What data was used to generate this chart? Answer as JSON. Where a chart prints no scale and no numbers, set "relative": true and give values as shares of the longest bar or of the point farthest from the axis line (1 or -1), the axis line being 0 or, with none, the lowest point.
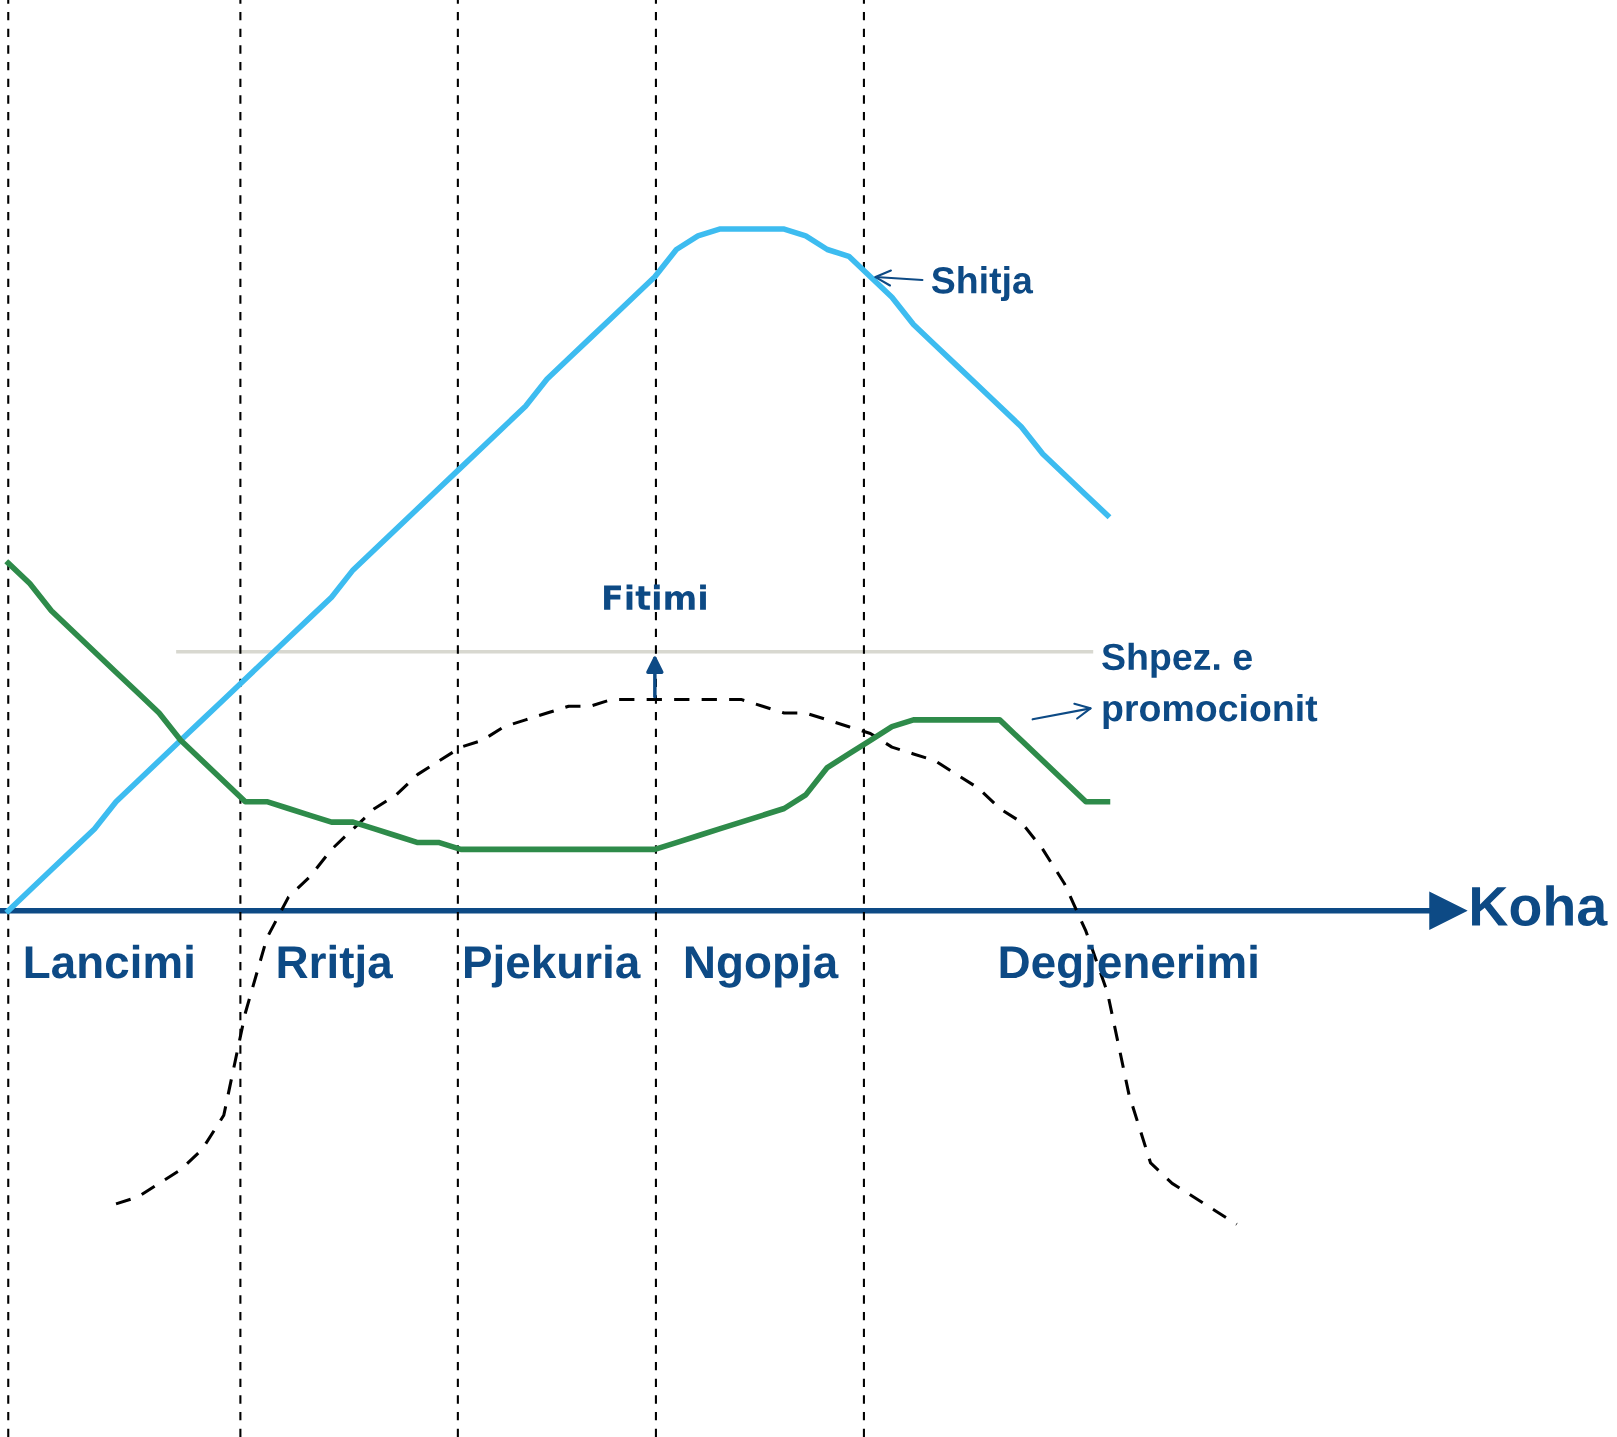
{
  "chart_data": {
    "type": "line",
    "relative": true,
    "xlabel": "Koha",
    "legend": false,
    "grid": "x",
    "marker": "none",
    "categories": [
      null,
      null,
      null,
      null,
      null,
      null,
      null,
      null,
      null,
      null,
      null,
      null,
      null,
      null,
      null,
      null,
      null,
      null,
      null,
      null,
      null,
      null,
      null,
      null,
      null,
      null,
      null,
      null,
      null,
      null,
      null,
      null,
      null,
      null,
      null,
      null,
      null,
      null,
      null,
      null,
      null,
      null,
      null,
      null,
      null,
      null,
      null,
      null,
      null,
      null,
      null,
      null,
      null,
      null,
      null,
      null,
      null,
      null
    ],
    "series": [
      {
        "name": "Shitja",
        "color": "#3dbcf0",
        "line_style": "solid",
        "values": [
          0,
          0.03,
          0.06,
          0.09,
          0.12,
          0.16,
          0.19,
          0.22,
          0.25,
          0.28,
          0.31,
          0.34,
          0.37,
          0.4,
          0.43,
          0.46,
          0.5,
          0.53,
          0.56,
          0.59,
          0.62,
          0.65,
          0.68,
          0.71,
          0.74,
          0.78,
          0.81,
          0.84,
          0.87,
          0.9,
          0.93,
          0.97,
          0.99,
          1.0,
          1.0,
          1.0,
          1.0,
          0.99,
          0.97,
          0.96,
          0.93,
          0.9,
          0.86,
          0.83,
          0.8,
          0.77,
          0.74,
          0.71,
          0.67,
          0.64,
          0.61,
          0.58,
          null,
          null,
          null,
          null,
          null,
          null
        ]
      },
      {
        "name": "Fitimi",
        "color": "#000000",
        "line_style": "dashed",
        "values": [
          null,
          null,
          null,
          null,
          null,
          -0.43,
          -0.42,
          -0.4,
          -0.38,
          -0.35,
          -0.3,
          -0.15,
          -0.04,
          0.02,
          0.05,
          0.09,
          0.12,
          0.15,
          0.17,
          0.2,
          0.22,
          0.24,
          0.25,
          0.27,
          0.28,
          0.29,
          0.3,
          0.3,
          0.31,
          0.31,
          0.31,
          0.31,
          0.31,
          0.31,
          0.31,
          0.3,
          0.29,
          0.29,
          0.28,
          0.27,
          0.26,
          0.24,
          0.23,
          0.22,
          0.2,
          0.18,
          0.15,
          0.13,
          0.09,
          0.04,
          -0.03,
          -0.12,
          -0.27,
          -0.37,
          -0.4,
          -0.42,
          -0.44,
          -0.46
        ]
      },
      {
        "name": "Shpez. e\npromocionit",
        "color": "#2e8b4a",
        "line_style": "solid",
        "values": [
          0.51,
          0.48,
          0.44,
          0.41,
          0.38,
          0.35,
          0.32,
          0.29,
          0.25,
          0.22,
          0.19,
          0.16,
          0.16,
          0.15,
          0.14,
          0.13,
          0.13,
          0.12,
          0.11,
          0.1,
          0.1,
          0.09,
          0.09,
          0.09,
          0.09,
          0.09,
          0.09,
          0.09,
          0.09,
          0.09,
          0.09,
          0.1,
          0.11,
          0.12,
          0.13,
          0.14,
          0.15,
          0.17,
          0.21,
          0.23,
          0.25,
          0.27,
          0.28,
          0.28,
          0.28,
          0.28,
          0.28,
          0.25,
          0.22,
          0.19,
          0.16,
          0.16,
          null,
          null,
          null,
          null,
          null,
          null
        ]
      }
    ],
    "ref_lines": [
      {
        "axis": "y",
        "value": 0,
        "color": "#0d4a85",
        "line_style": "solid"
      },
      {
        "axis": "y",
        "value": 0.38,
        "color": "#d8d8d0",
        "line_style": "solid"
      }
    ],
    "annotations": [
      "Lancimi",
      "Rritja",
      "Pjekuria",
      "Ngopja",
      "Degjenerimi"
    ]
  }
}
